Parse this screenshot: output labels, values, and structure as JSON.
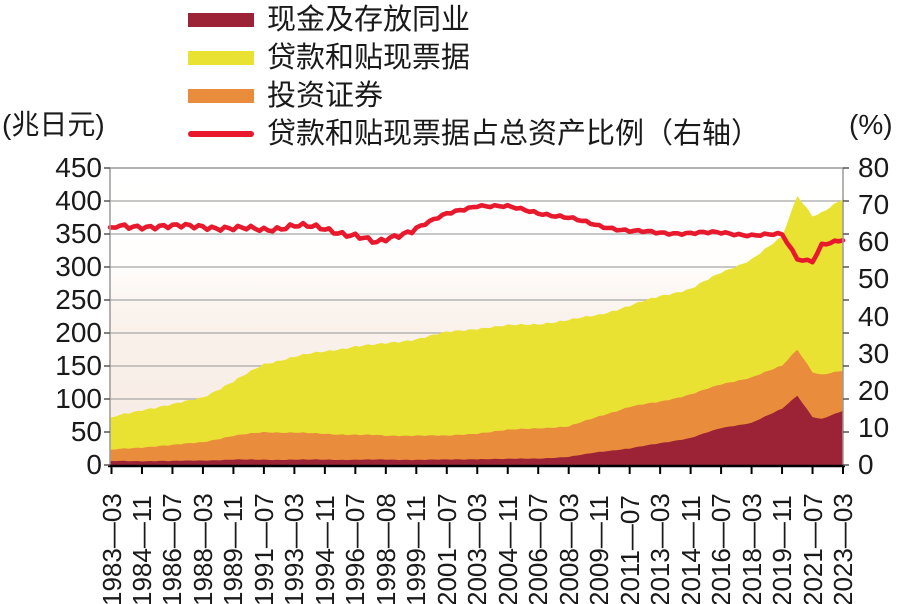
{
  "chart_data": {
    "type": "area",
    "stacked": true,
    "title": "",
    "legend_position": "top-left",
    "grid": true,
    "left_axis": {
      "label": "(兆日元)",
      "min": 0,
      "max": 450,
      "step": 50,
      "ticks": [
        450,
        400,
        350,
        300,
        250,
        200,
        150,
        100,
        50,
        0
      ]
    },
    "right_axis": {
      "label": "(%)",
      "min": 0,
      "max": 80,
      "step": 10,
      "ticks": [
        80,
        70,
        60,
        50,
        40,
        30,
        20,
        10,
        0
      ]
    },
    "x_labels": [
      "1983—03",
      "1984—11",
      "1986—07",
      "1988—03",
      "1989—11",
      "1991—07",
      "1993—03",
      "1994—11",
      "1996—07",
      "1998—08",
      "1999—11",
      "2001—07",
      "2003—03",
      "2004—11",
      "2006—07",
      "2008—03",
      "2009—11",
      "2011—07",
      "2013—03",
      "2014—11",
      "2016—07",
      "2018—03",
      "2019—11",
      "2021—07",
      "2023—03"
    ],
    "x_index": [
      0,
      1,
      2,
      3,
      4,
      5,
      6,
      7,
      8,
      8.7,
      9,
      10,
      11,
      12,
      13,
      14,
      15,
      16,
      17,
      18,
      19,
      20,
      21,
      22,
      22.5,
      23,
      23.3,
      24
    ],
    "stack_order": [
      "现金及存放同业",
      "投资证券",
      "贷款和贴现票据"
    ],
    "series": [
      {
        "name": "现金及存放同业",
        "type": "area",
        "axis": "left",
        "color": "#9b2335",
        "values": [
          6,
          6,
          6,
          7,
          8,
          8,
          8,
          8,
          8,
          8,
          8,
          8,
          8,
          9,
          9,
          10,
          12,
          20,
          25,
          33,
          41,
          56,
          64,
          85,
          105,
          73,
          70,
          82
        ]
      },
      {
        "name": "贷款和贴现票据",
        "type": "area",
        "axis": "left",
        "color": "#e9e233",
        "values": [
          49,
          57,
          61,
          68,
          82,
          103,
          115,
          125,
          134,
          137,
          140,
          146,
          157,
          159,
          158,
          158,
          161,
          154,
          153,
          160,
          160,
          169,
          179,
          195,
          233,
          237,
          246,
          260
        ]
      },
      {
        "name": "投资证券",
        "type": "area",
        "axis": "left",
        "color": "#e98c3c",
        "values": [
          17,
          21,
          24,
          28,
          36,
          42,
          41,
          39,
          38,
          37,
          36,
          37,
          36,
          39,
          44,
          46,
          46,
          54,
          63,
          63,
          66,
          66,
          69,
          65,
          70,
          68,
          67,
          61
        ]
      },
      {
        "name": "贷款和贴现票据占总资产比例（右轴）",
        "type": "line",
        "axis": "right",
        "color": "#e8192d",
        "values": [
          64,
          64.5,
          64,
          64.5,
          63.5,
          63.5,
          64.5,
          63.5,
          62,
          59.5,
          60.5,
          64,
          67.5,
          70,
          69.5,
          68,
          66.5,
          64.5,
          63,
          62.5,
          62.5,
          62.5,
          62,
          62,
          55.5,
          55,
          59.5,
          60.5
        ]
      }
    ]
  }
}
